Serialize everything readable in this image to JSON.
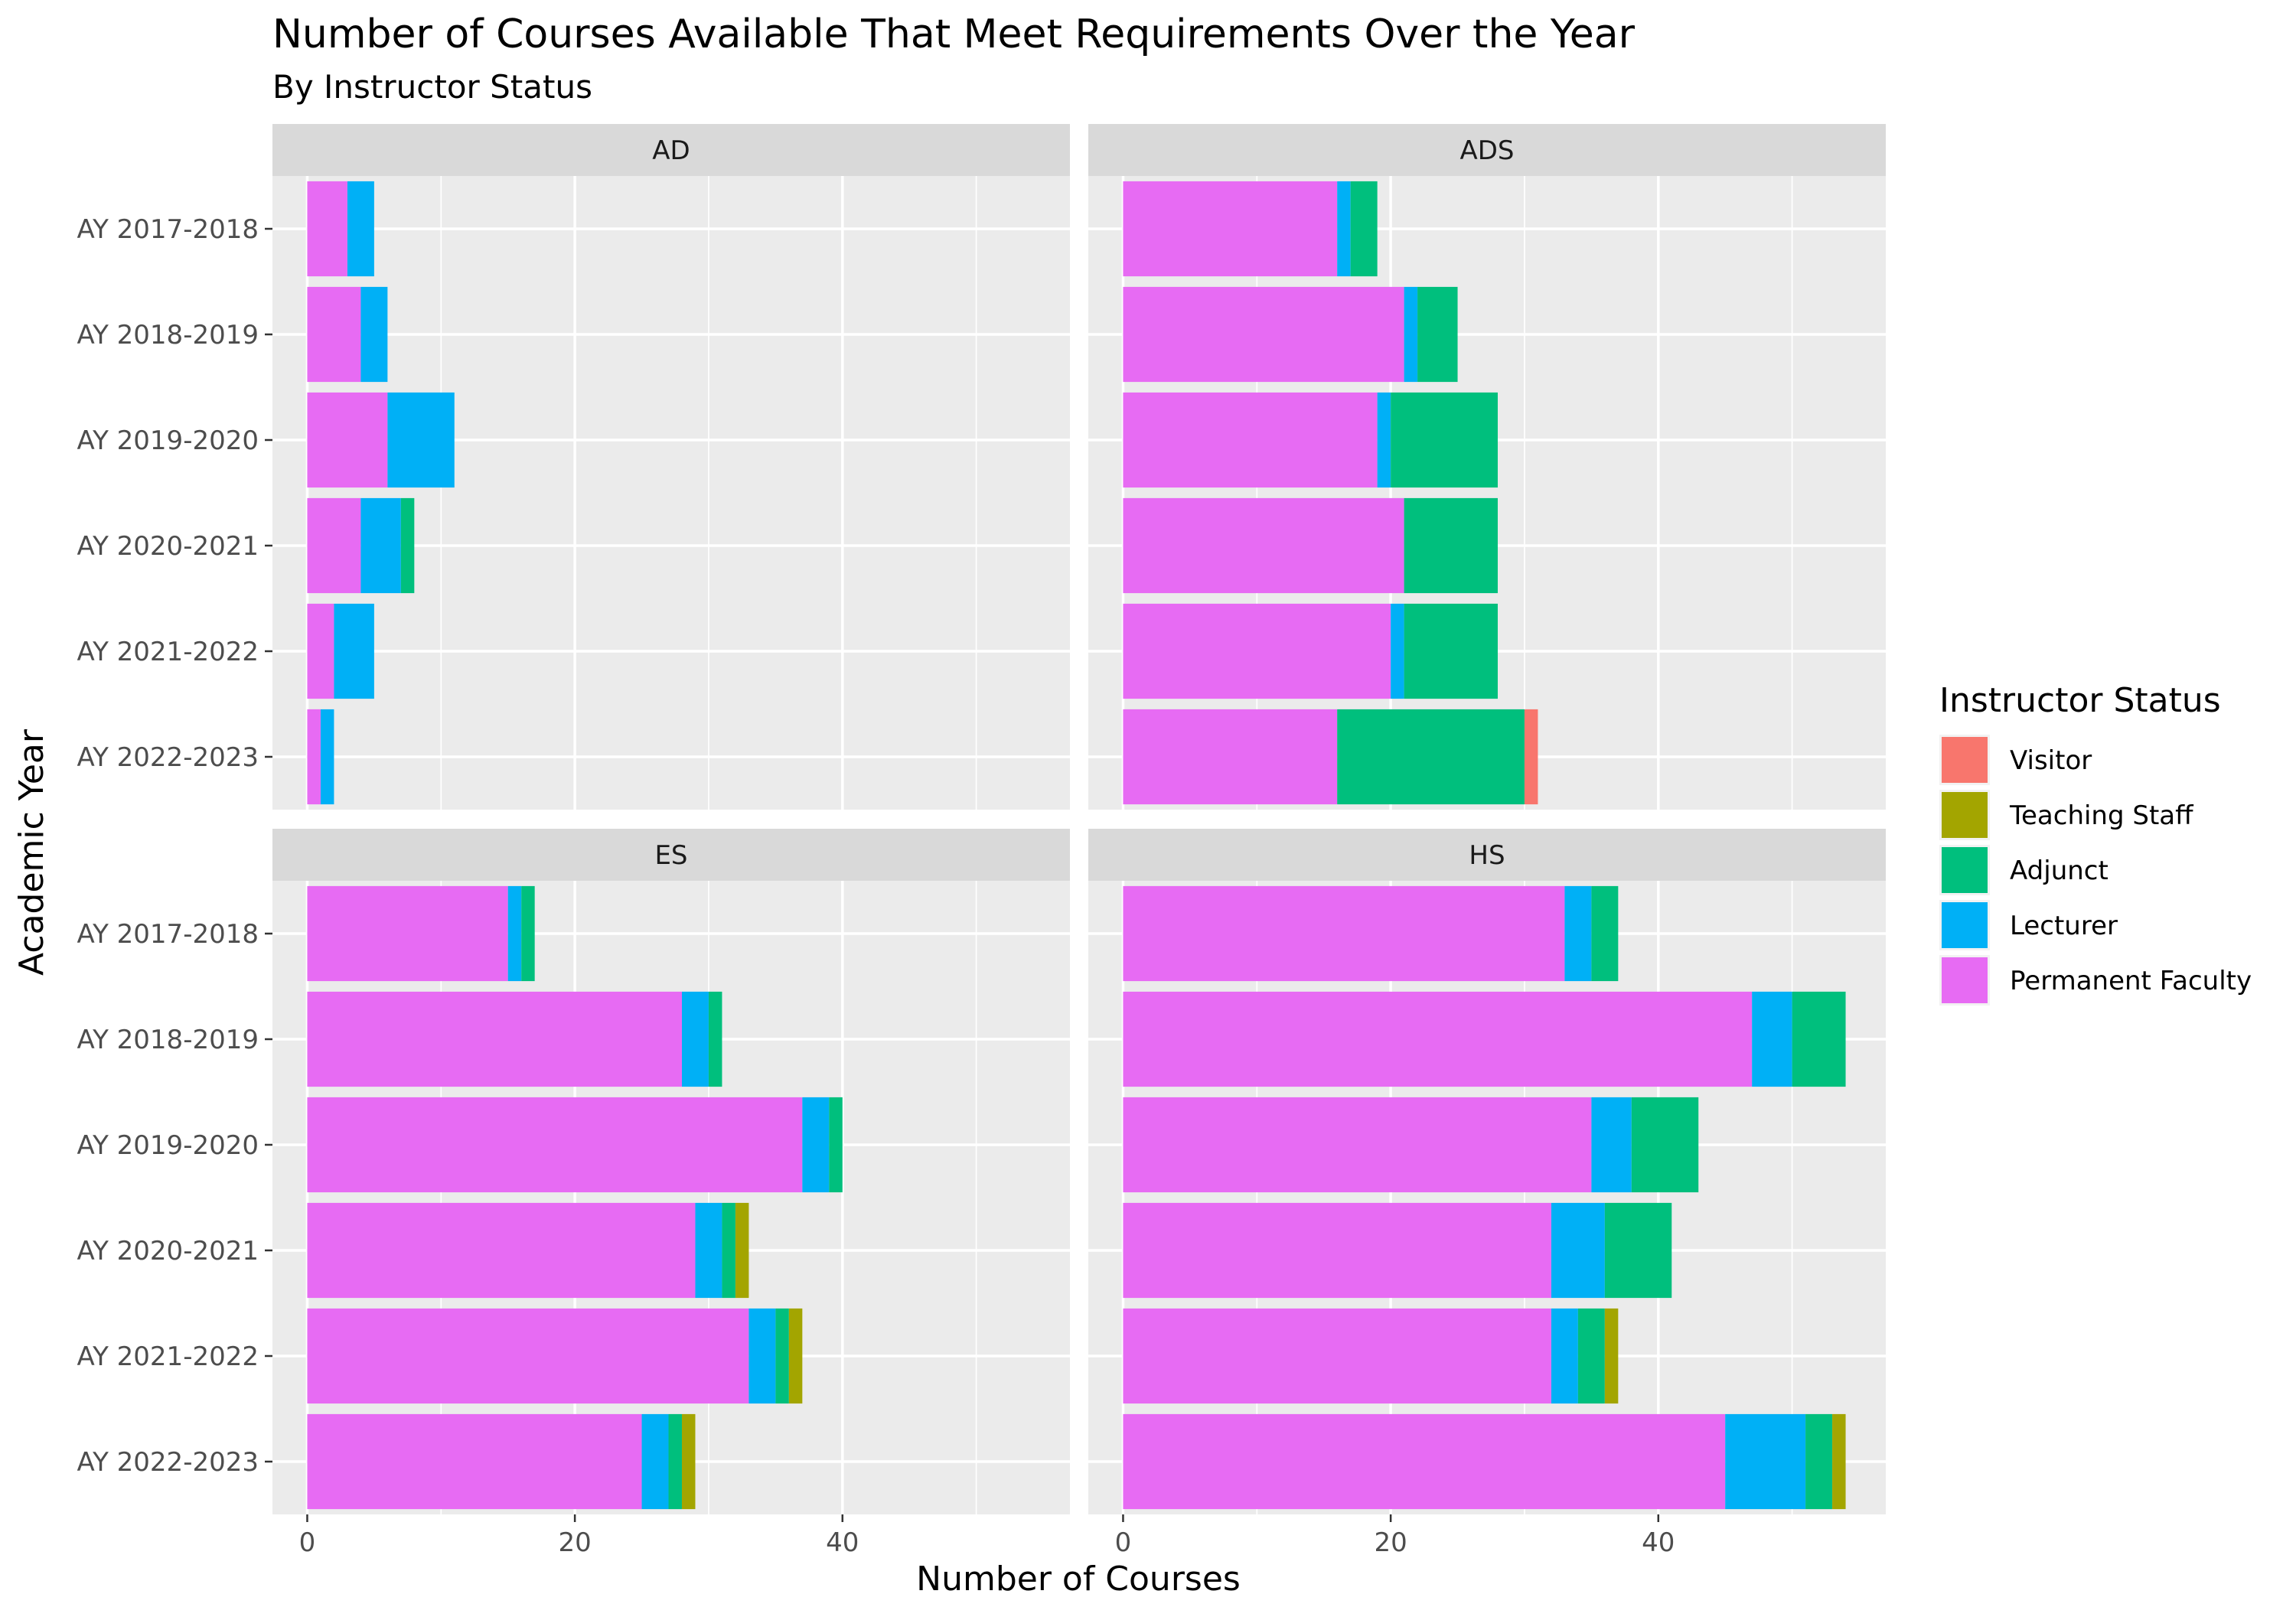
{
  "chart_data": {
    "type": "bar",
    "orientation": "horizontal",
    "stacked": true,
    "faceted": true,
    "title": "Number of Courses Available That Meet Requirements Over the Year",
    "subtitle": "By Instructor Status",
    "xlabel": "Number of Courses",
    "ylabel": "Academic Year",
    "xlim": [
      -2.6,
      57
    ],
    "x_ticks": [
      0,
      20,
      40
    ],
    "grid": true,
    "categories": [
      "AY 2017-2018",
      "AY 2018-2019",
      "AY 2019-2020",
      "AY 2020-2021",
      "AY 2021-2022",
      "AY 2022-2023"
    ],
    "stack_order": [
      "Permanent Faculty",
      "Lecturer",
      "Adjunct",
      "Teaching Staff",
      "Visitor"
    ],
    "legend": {
      "title": "Instructor Status",
      "position": "right",
      "entries": [
        "Visitor",
        "Teaching Staff",
        "Adjunct",
        "Lecturer",
        "Permanent Faculty"
      ]
    },
    "colors": {
      "Visitor": "#F8766D",
      "Teaching Staff": "#A3A500",
      "Adjunct": "#00BF7D",
      "Lecturer": "#00B0F6",
      "Permanent Faculty": "#E76BF3"
    },
    "facets": [
      {
        "name": "AD",
        "series": [
          {
            "name": "Permanent Faculty",
            "values": [
              3,
              4,
              6,
              4,
              2,
              1
            ]
          },
          {
            "name": "Lecturer",
            "values": [
              2,
              2,
              5,
              3,
              3,
              1
            ]
          },
          {
            "name": "Adjunct",
            "values": [
              0,
              0,
              0,
              1,
              0,
              0
            ]
          },
          {
            "name": "Teaching Staff",
            "values": [
              0,
              0,
              0,
              0,
              0,
              0
            ]
          },
          {
            "name": "Visitor",
            "values": [
              0,
              0,
              0,
              0,
              0,
              0
            ]
          }
        ]
      },
      {
        "name": "ADS",
        "series": [
          {
            "name": "Permanent Faculty",
            "values": [
              16,
              21,
              19,
              21,
              20,
              16
            ]
          },
          {
            "name": "Lecturer",
            "values": [
              1,
              1,
              1,
              0,
              1,
              0
            ]
          },
          {
            "name": "Adjunct",
            "values": [
              2,
              3,
              8,
              7,
              7,
              14
            ]
          },
          {
            "name": "Teaching Staff",
            "values": [
              0,
              0,
              0,
              0,
              0,
              0
            ]
          },
          {
            "name": "Visitor",
            "values": [
              0,
              0,
              0,
              0,
              0,
              1
            ]
          }
        ]
      },
      {
        "name": "ES",
        "series": [
          {
            "name": "Permanent Faculty",
            "values": [
              15,
              28,
              37,
              29,
              33,
              25
            ]
          },
          {
            "name": "Lecturer",
            "values": [
              1,
              2,
              2,
              2,
              2,
              2
            ]
          },
          {
            "name": "Adjunct",
            "values": [
              1,
              1,
              1,
              1,
              1,
              1
            ]
          },
          {
            "name": "Teaching Staff",
            "values": [
              0,
              0,
              0,
              1,
              1,
              1
            ]
          },
          {
            "name": "Visitor",
            "values": [
              0,
              0,
              0,
              0,
              0,
              0
            ]
          }
        ]
      },
      {
        "name": "HS",
        "series": [
          {
            "name": "Permanent Faculty",
            "values": [
              33,
              47,
              35,
              32,
              32,
              45
            ]
          },
          {
            "name": "Lecturer",
            "values": [
              2,
              3,
              3,
              4,
              2,
              6
            ]
          },
          {
            "name": "Adjunct",
            "values": [
              2,
              4,
              5,
              5,
              2,
              2
            ]
          },
          {
            "name": "Teaching Staff",
            "values": [
              0,
              0,
              0,
              0,
              1,
              1
            ]
          },
          {
            "name": "Visitor",
            "values": [
              0,
              0,
              0,
              0,
              0,
              0
            ]
          }
        ]
      }
    ]
  }
}
